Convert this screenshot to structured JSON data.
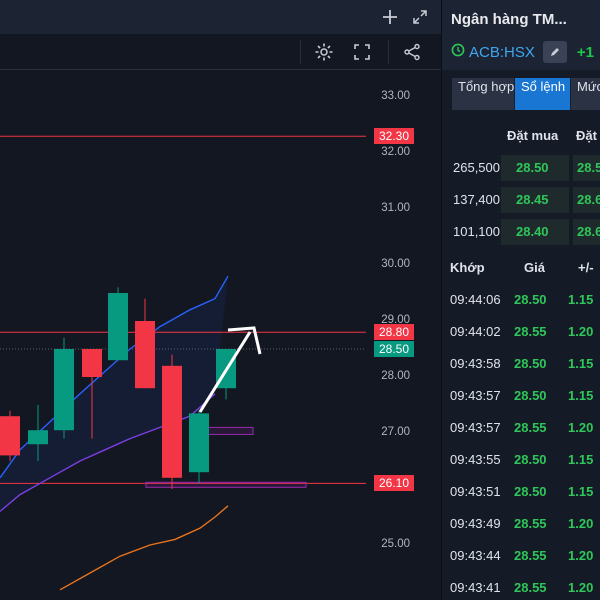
{
  "chart": {
    "axis_ticks": [
      "33.00",
      "32.00",
      "31.00",
      "30.00",
      "29.00",
      "28.00",
      "27.00",
      "26.00",
      "25.00"
    ],
    "labels": [
      {
        "text": "32.30",
        "color": "#f23645"
      },
      {
        "text": "28.80",
        "color": "#f23645"
      },
      {
        "text": "28.50",
        "color": "#089981"
      },
      {
        "text": "26.10",
        "color": "#f23645"
      }
    ],
    "colors": {
      "up": "#089981",
      "down": "#f23645",
      "line_blue": "#2962ff",
      "line_purple": "#7b3fe4",
      "line_orange": "#e8741c",
      "hline": "#f23645",
      "box": "#9c27b0"
    }
  },
  "chart_data": {
    "type": "candlestick",
    "candles": [
      {
        "open": 27.3,
        "high": 27.4,
        "low": 26.5,
        "close": 26.6
      },
      {
        "open": 26.8,
        "high": 27.5,
        "low": 26.5,
        "close": 27.05
      },
      {
        "open": 27.05,
        "high": 28.7,
        "low": 26.9,
        "close": 28.5
      },
      {
        "open": 28.5,
        "high": 28.5,
        "low": 26.9,
        "close": 28.0
      },
      {
        "open": 28.3,
        "high": 29.6,
        "low": 28.3,
        "close": 29.5
      },
      {
        "open": 29.0,
        "high": 29.4,
        "low": 27.8,
        "close": 27.8
      },
      {
        "open": 28.2,
        "high": 28.4,
        "low": 26.0,
        "close": 26.2
      },
      {
        "open": 26.3,
        "high": 27.4,
        "low": 26.1,
        "close": 27.35
      },
      {
        "open": 27.8,
        "high": 28.5,
        "low": 27.6,
        "close": 28.5
      }
    ],
    "horizontal_lines": [
      32.3,
      28.8,
      26.1
    ],
    "ma_blue": [
      26.2,
      26.7,
      27.2,
      27.7,
      28.1,
      28.5,
      28.9,
      29.2,
      29.4,
      29.8
    ],
    "ma_purple": [
      25.6,
      25.9,
      26.2,
      26.5,
      26.7,
      26.9,
      27.1,
      27.3,
      27.7
    ],
    "ma_orange": [
      24.2,
      24.5,
      24.8,
      25.0,
      25.1,
      25.3,
      25.5,
      25.7
    ],
    "last_price": 28.5,
    "ylim": [
      24.0,
      33.4
    ]
  },
  "side": {
    "company": "Ngân hàng TM...",
    "ticker": "ACB:HSX",
    "change": "+1",
    "tabs": [
      {
        "label": "Tổng hợp"
      },
      {
        "label": "Sổ lệnh"
      },
      {
        "label": "Mức giá"
      }
    ],
    "book_header": {
      "buy": "Đặt mua",
      "sell": "Đặt"
    },
    "book": [
      {
        "vol": "265,500",
        "price": "28.50",
        "price2": "28.5"
      },
      {
        "vol": "137,400",
        "price": "28.45",
        "price2": "28.6"
      },
      {
        "vol": "101,100",
        "price": "28.40",
        "price2": "28.6"
      }
    ],
    "trade_header": {
      "time": "Khớp",
      "price": "Giá",
      "change": "+/-"
    },
    "trades": [
      {
        "time": "09:44:06",
        "price": "28.50",
        "change": "1.15"
      },
      {
        "time": "09:44:02",
        "price": "28.55",
        "change": "1.20"
      },
      {
        "time": "09:43:58",
        "price": "28.50",
        "change": "1.15"
      },
      {
        "time": "09:43:57",
        "price": "28.50",
        "change": "1.15"
      },
      {
        "time": "09:43:57",
        "price": "28.55",
        "change": "1.20"
      },
      {
        "time": "09:43:55",
        "price": "28.50",
        "change": "1.15"
      },
      {
        "time": "09:43:51",
        "price": "28.50",
        "change": "1.15"
      },
      {
        "time": "09:43:49",
        "price": "28.55",
        "change": "1.20"
      },
      {
        "time": "09:43:44",
        "price": "28.55",
        "change": "1.20"
      },
      {
        "time": "09:43:41",
        "price": "28.55",
        "change": "1.20"
      }
    ]
  }
}
